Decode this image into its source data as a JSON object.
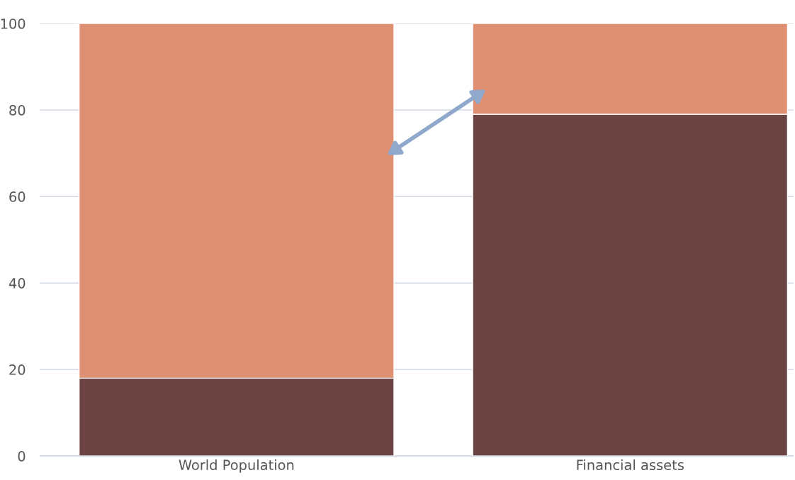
{
  "chart_data": {
    "type": "bar",
    "stacked": true,
    "categories": [
      "World Population",
      "Financial assets"
    ],
    "series": [
      {
        "color": "#6d4444",
        "values": [
          18,
          79
        ]
      },
      {
        "color": "#e09072",
        "values": [
          82,
          21
        ]
      }
    ],
    "ylim": [
      0,
      100
    ],
    "yticks": [
      0,
      20,
      40,
      60,
      80,
      100
    ],
    "grid": "y"
  }
}
